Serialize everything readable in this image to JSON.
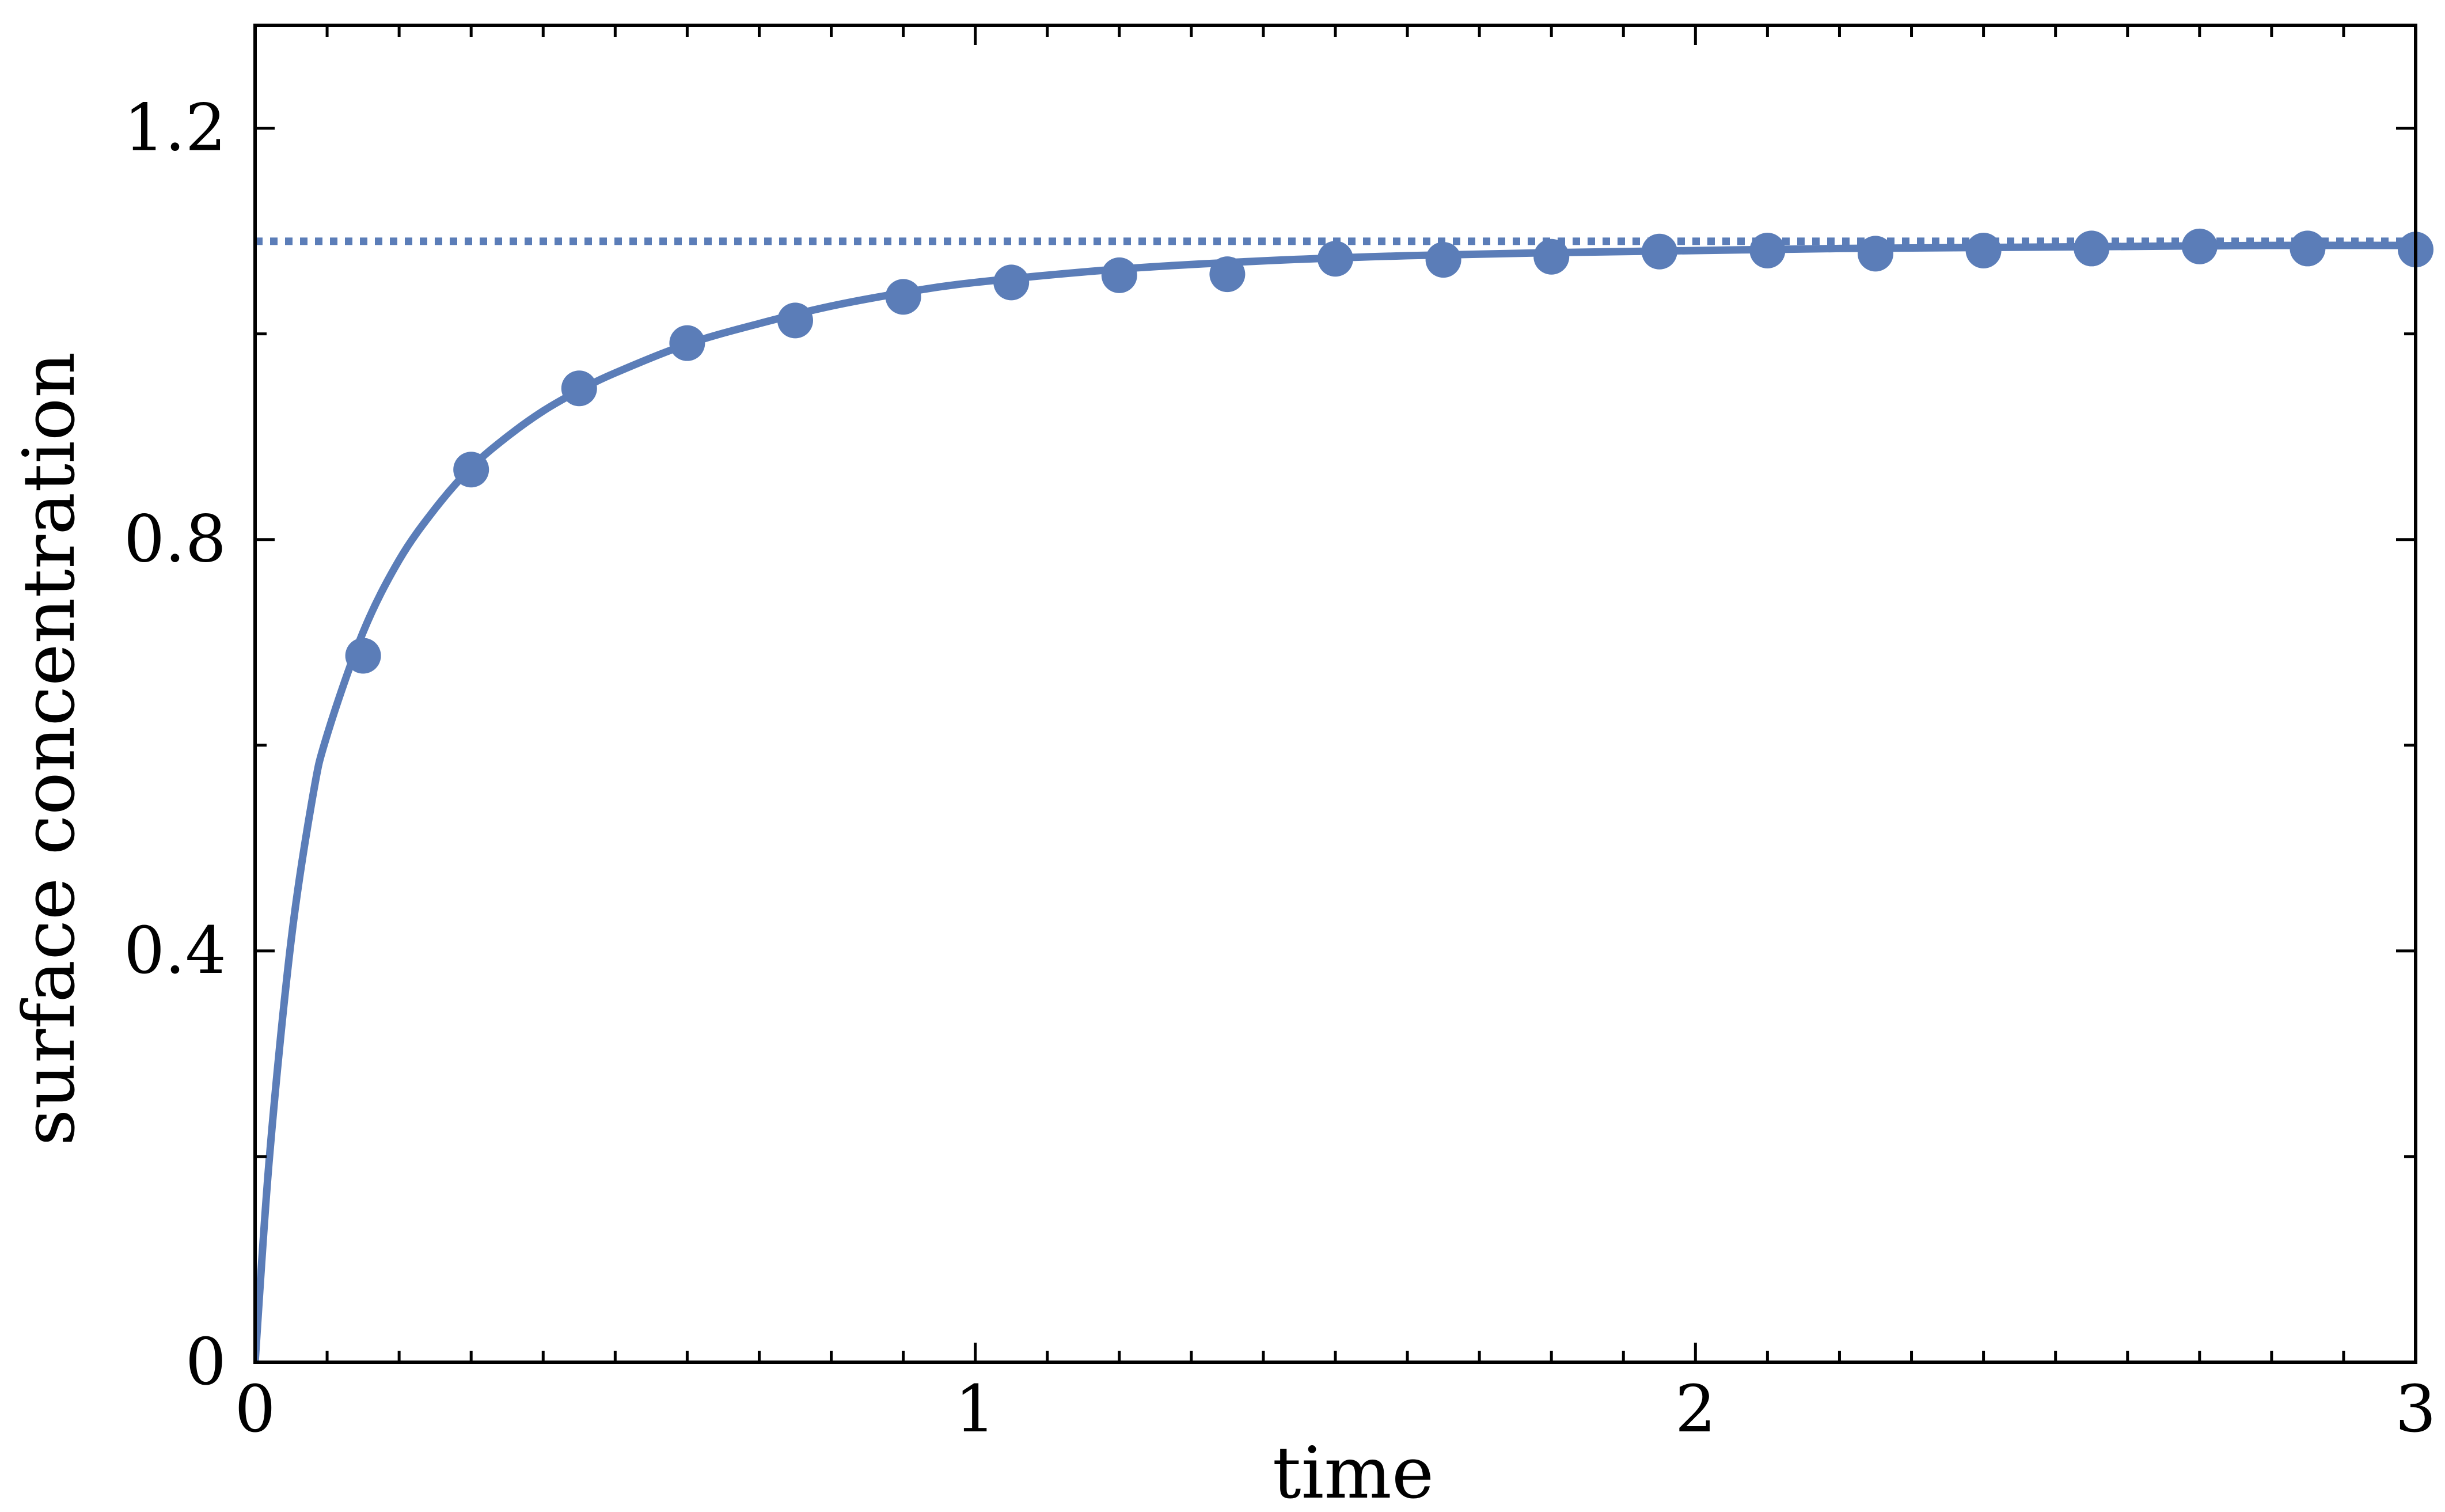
{
  "chart_data": {
    "type": "line",
    "title": "",
    "xlabel": "time",
    "ylabel": "surface concentration",
    "xlim": [
      0,
      3
    ],
    "ylim": [
      0,
      1.3
    ],
    "x_ticks": [
      0,
      1,
      2,
      3
    ],
    "x_tick_labels": [
      "0",
      "1",
      "2",
      "3"
    ],
    "x_minor_step": 0.1,
    "y_ticks": [
      0,
      0.4,
      0.8,
      1.2
    ],
    "y_tick_labels": [
      "0",
      "0.4",
      "0.8",
      "1.2"
    ],
    "y_minor_step": 0.2,
    "grid": false,
    "legend": "none",
    "color": "#5b7db8",
    "series": [
      {
        "style": "solid line",
        "x": [
          0,
          0.02,
          0.05,
          0.08,
          0.1,
          0.15,
          0.2,
          0.25,
          0.3,
          0.35,
          0.4,
          0.45,
          0.5,
          0.6,
          0.7,
          0.8,
          0.9,
          1.0,
          1.2,
          1.4,
          1.6,
          1.8,
          2.0,
          2.2,
          2.4,
          2.6,
          2.8,
          3.0
        ],
        "y": [
          0,
          0.2,
          0.41,
          0.55,
          0.61,
          0.71,
          0.78,
          0.83,
          0.87,
          0.9,
          0.925,
          0.945,
          0.962,
          0.99,
          1.01,
          1.027,
          1.04,
          1.05,
          1.063,
          1.071,
          1.076,
          1.079,
          1.081,
          1.083,
          1.084,
          1.085,
          1.086,
          1.086
        ]
      },
      {
        "style": "markers",
        "x": [
          0.15,
          0.3,
          0.45,
          0.6,
          0.75,
          0.9,
          1.05,
          1.2,
          1.35,
          1.5,
          1.65,
          1.8,
          1.95,
          2.1,
          2.25,
          2.4,
          2.55,
          2.7,
          2.85,
          3.0
        ],
        "y": [
          0.687,
          0.868,
          0.947,
          0.991,
          1.013,
          1.036,
          1.05,
          1.057,
          1.058,
          1.073,
          1.072,
          1.075,
          1.08,
          1.081,
          1.078,
          1.081,
          1.083,
          1.085,
          1.083,
          1.082
        ]
      },
      {
        "style": "dotted line",
        "x": [
          0,
          3
        ],
        "y": [
          1.09,
          1.09
        ]
      }
    ]
  }
}
